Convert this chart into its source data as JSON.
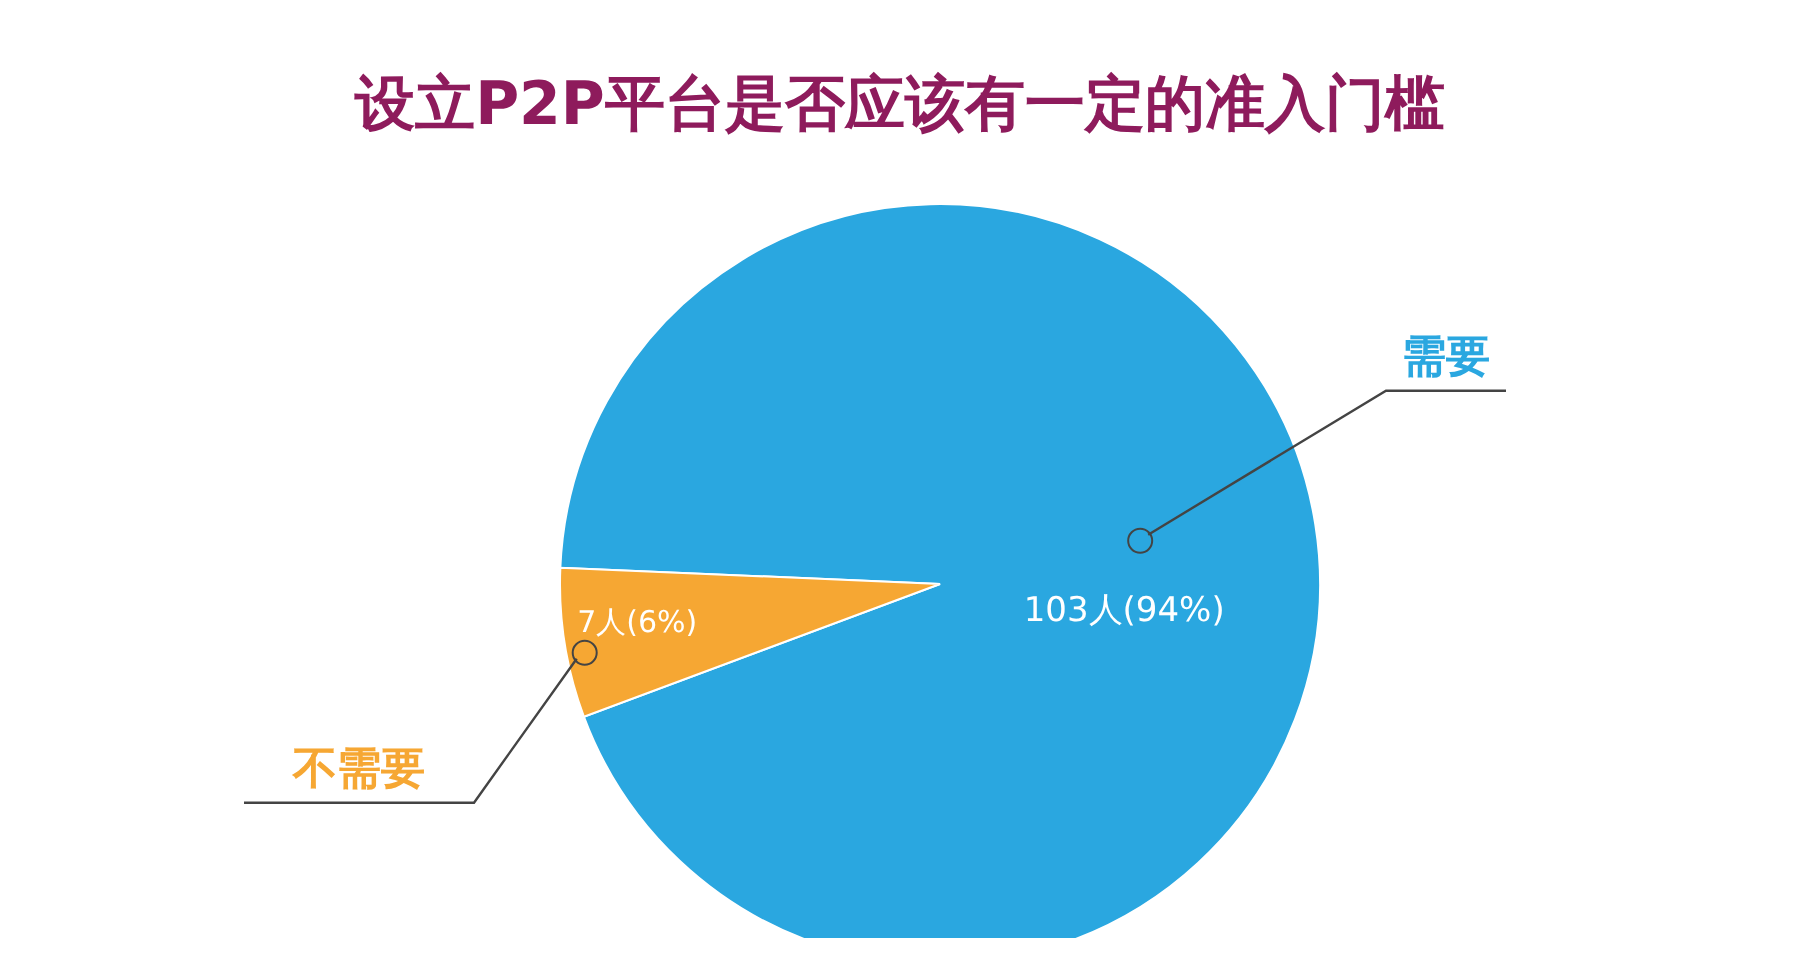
{
  "chart_data": {
    "type": "pie",
    "title": "设立P2P平台是否应该有一定的准入门槛",
    "categories": [
      "需要",
      "不需要"
    ],
    "values": [
      103,
      7
    ],
    "value_labels": [
      "103人(94%)",
      "7人(6%)"
    ],
    "colors": [
      "#2aa7e0",
      "#f6a733"
    ]
  }
}
